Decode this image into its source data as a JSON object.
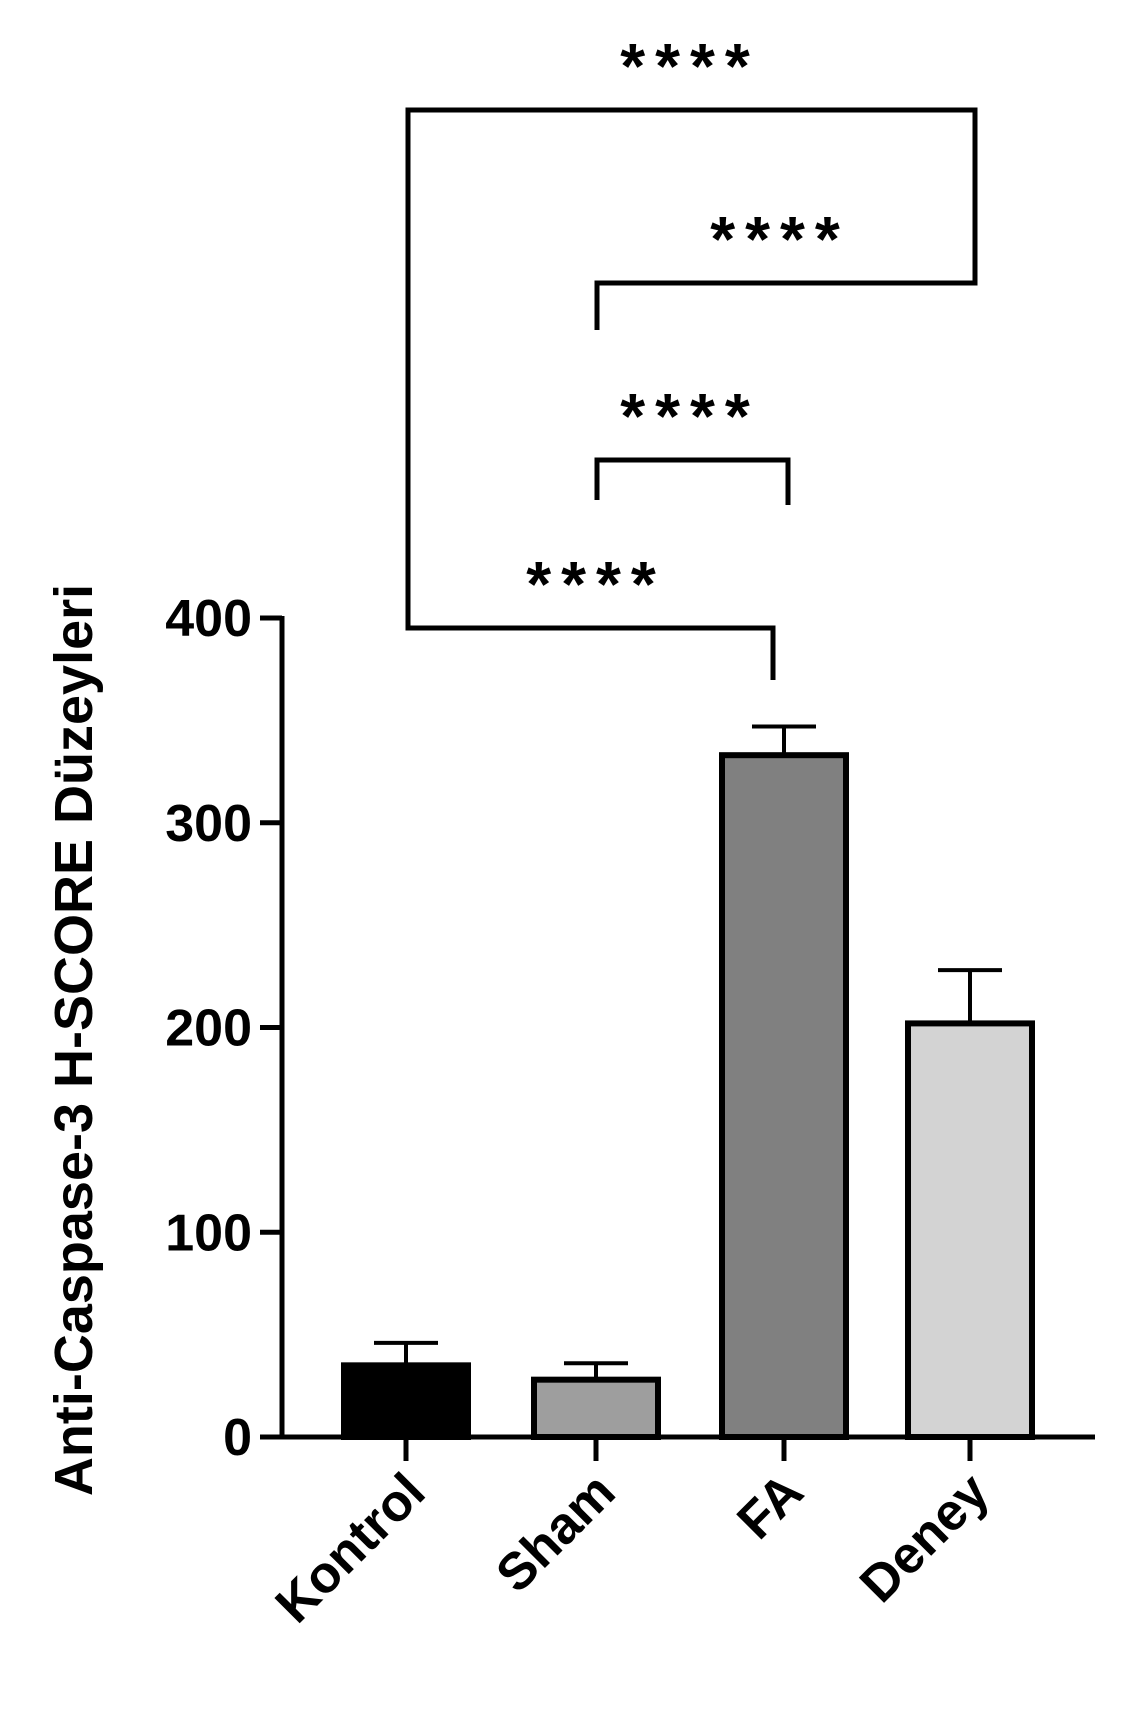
{
  "chart_data": {
    "type": "bar",
    "ylabel": "Anti-Caspase-3 H-SCORE Düzeyleri",
    "xlabel": "",
    "ylim": [
      0,
      400
    ],
    "yticks": [
      "0",
      "100",
      "200",
      "300",
      "400"
    ],
    "categories": [
      "Kontrol",
      "Sham",
      "FA",
      "Deney"
    ],
    "values": [
      35,
      28,
      333,
      202
    ],
    "errors": [
      11,
      8,
      14,
      26
    ],
    "colors": [
      "#000000",
      "#9e9e9e",
      "#808080",
      "#d3d3d3"
    ],
    "significance": [
      {
        "from": 0,
        "to": 2,
        "label": "****"
      },
      {
        "from": 1,
        "to": 2,
        "label": "****"
      },
      {
        "from": 1,
        "to": 3,
        "label": "****"
      },
      {
        "from": 0,
        "to": 3,
        "label": "****"
      }
    ]
  }
}
